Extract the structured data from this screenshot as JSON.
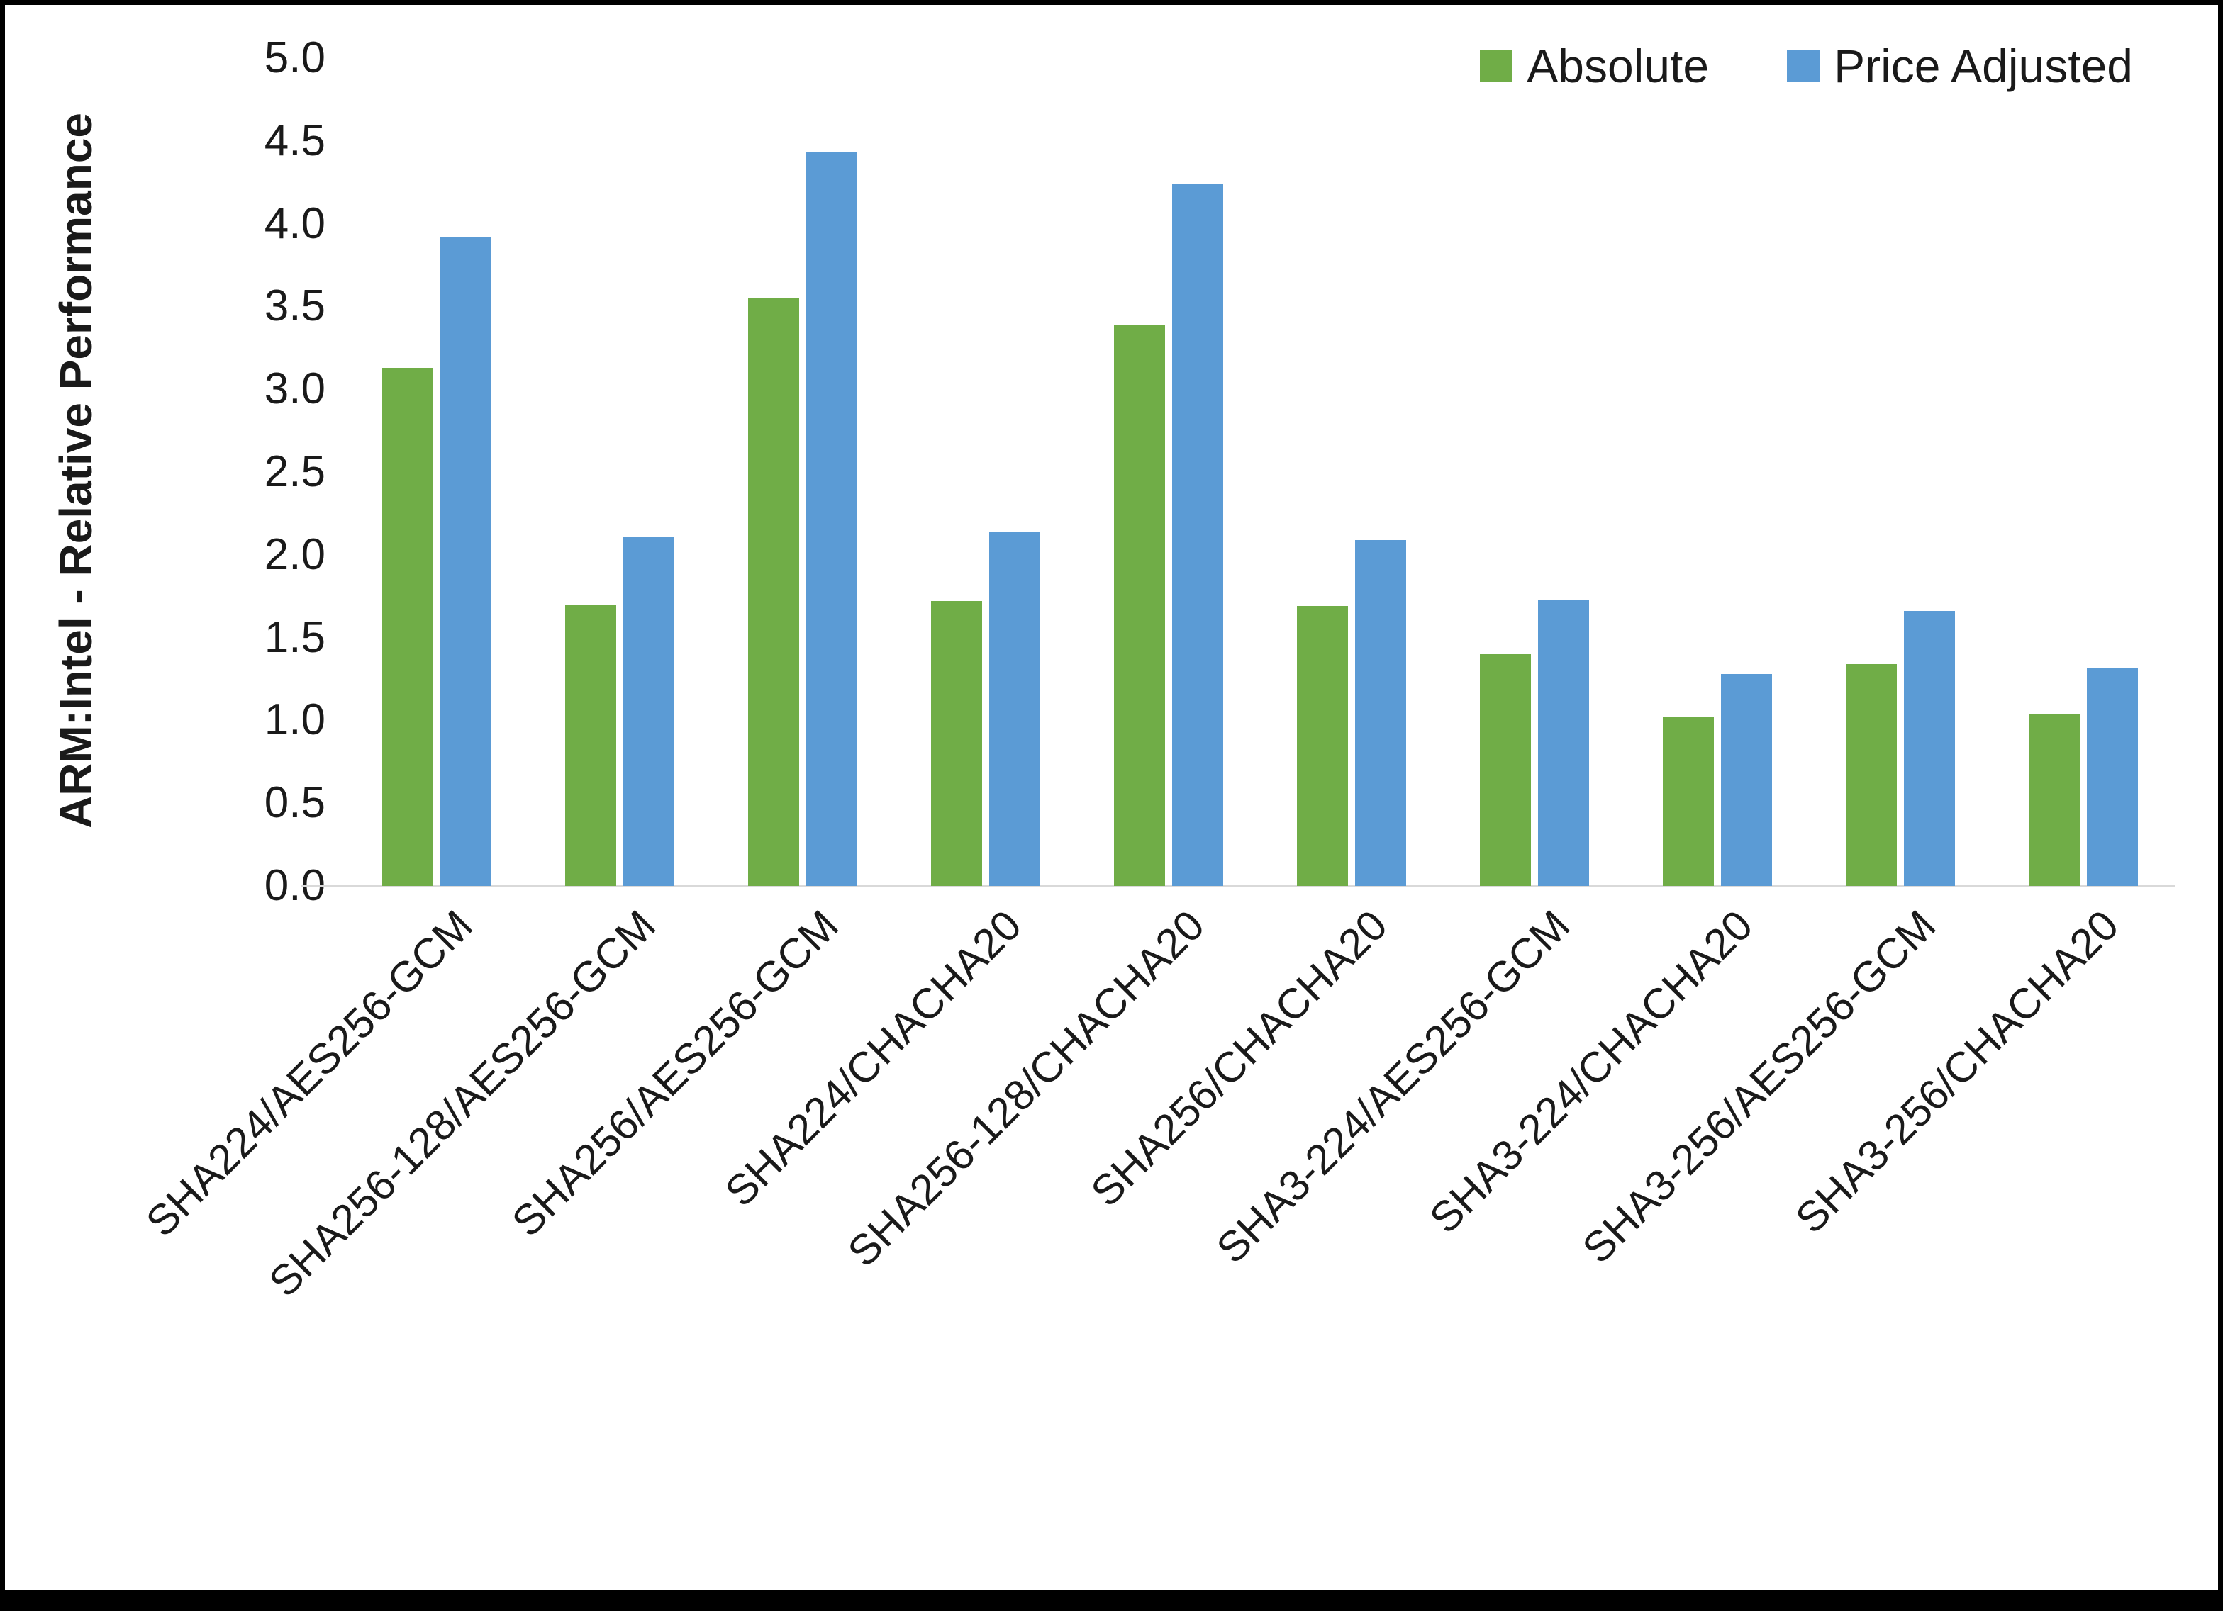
{
  "chart_data": {
    "type": "bar",
    "title": "",
    "xlabel": "",
    "ylabel": "ARM:Intel - Relative Performance",
    "ylim": [
      0,
      5
    ],
    "ytick_step": 0.5,
    "yticks": [
      "5.0",
      "4.5",
      "4.0",
      "3.5",
      "3.0",
      "2.5",
      "2.0",
      "1.5",
      "1.0",
      "0.5",
      "0.0"
    ],
    "grid": "off",
    "legend_position": "top-right",
    "axis_line_color": "#d9d9d9",
    "categories": [
      "SHA224/AES256-GCM",
      "SHA256-128/AES256-GCM",
      "SHA256/AES256-GCM",
      "SHA224/CHACHA20",
      "SHA256-128/CHACHA20",
      "SHA256/CHACHA20",
      "SHA3-224/AES256-GCM",
      "SHA3-224/CHACHA20",
      "SHA3-256/AES256-GCM",
      "SHA3-256/CHACHA20"
    ],
    "series": [
      {
        "name": "Absolute",
        "color": "#70AD47",
        "values": [
          3.13,
          1.7,
          3.55,
          1.72,
          3.39,
          1.69,
          1.4,
          1.02,
          1.34,
          1.04
        ]
      },
      {
        "name": "Price Adjusted",
        "color": "#5B9BD5",
        "values": [
          3.92,
          2.11,
          4.43,
          2.14,
          4.24,
          2.09,
          1.73,
          1.28,
          1.66,
          1.32
        ]
      }
    ]
  }
}
